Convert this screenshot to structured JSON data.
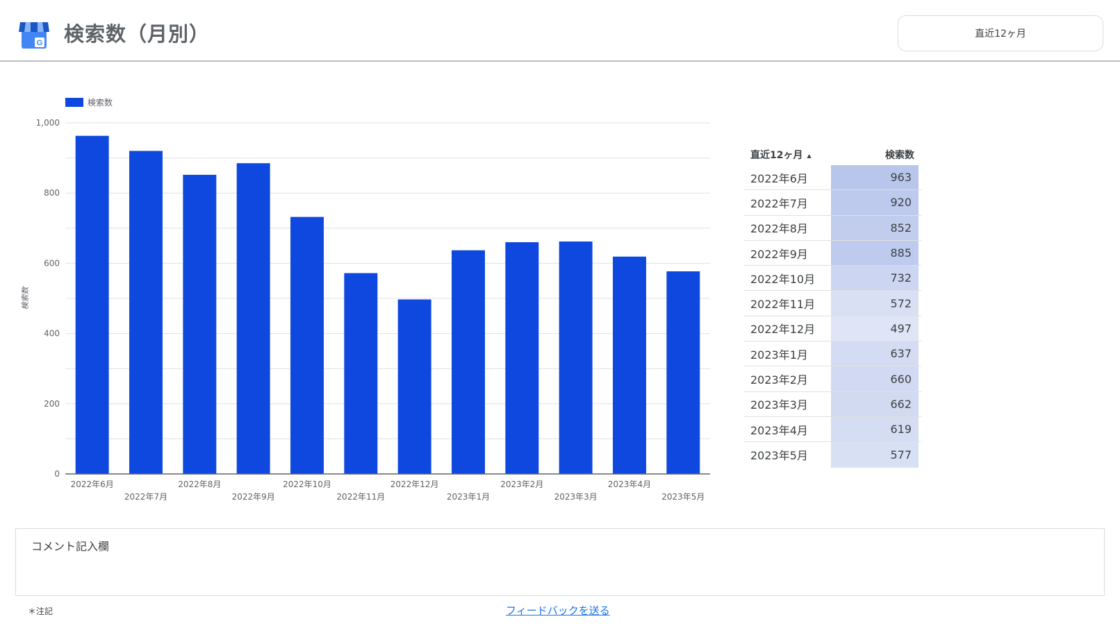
{
  "header": {
    "title": "検索数（月別）",
    "logo_icon": "google-business-profile-icon",
    "date_range_label": "直近12ヶ月"
  },
  "colors": {
    "bar": "#0f48de",
    "cell_high": "#b9c6ec",
    "cell_low": "#dfe5f6"
  },
  "chart_data": {
    "type": "bar",
    "categories": [
      "2022年6月",
      "2022年7月",
      "2022年8月",
      "2022年9月",
      "2022年10月",
      "2022年11月",
      "2022年12月",
      "2023年1月",
      "2023年2月",
      "2023年3月",
      "2023年4月",
      "2023年5月"
    ],
    "series": [
      {
        "name": "検索数",
        "values": [
          963,
          920,
          852,
          885,
          732,
          572,
          497,
          637,
          660,
          662,
          619,
          577
        ]
      }
    ],
    "ylabel": "検索数",
    "ylim": [
      0,
      1000
    ],
    "yticks": [
      "0",
      "200",
      "400",
      "600",
      "800",
      "1,000"
    ],
    "legend": "top-left",
    "grid": true
  },
  "table": {
    "headers": {
      "month": "直近12ヶ月",
      "value": "検索数"
    },
    "rows": [
      {
        "month": "2022年6月",
        "value": "963"
      },
      {
        "month": "2022年7月",
        "value": "920"
      },
      {
        "month": "2022年8月",
        "value": "852"
      },
      {
        "month": "2022年9月",
        "value": "885"
      },
      {
        "month": "2022年10月",
        "value": "732"
      },
      {
        "month": "2022年11月",
        "value": "572"
      },
      {
        "month": "2022年12月",
        "value": "497"
      },
      {
        "month": "2023年1月",
        "value": "637"
      },
      {
        "month": "2023年2月",
        "value": "660"
      },
      {
        "month": "2023年3月",
        "value": "662"
      },
      {
        "month": "2023年4月",
        "value": "619"
      },
      {
        "month": "2023年5月",
        "value": "577"
      }
    ]
  },
  "comment": {
    "label": "コメント記入欄"
  },
  "footer": {
    "note": "＊注記",
    "feedback_link": "フィードバックを送る"
  }
}
